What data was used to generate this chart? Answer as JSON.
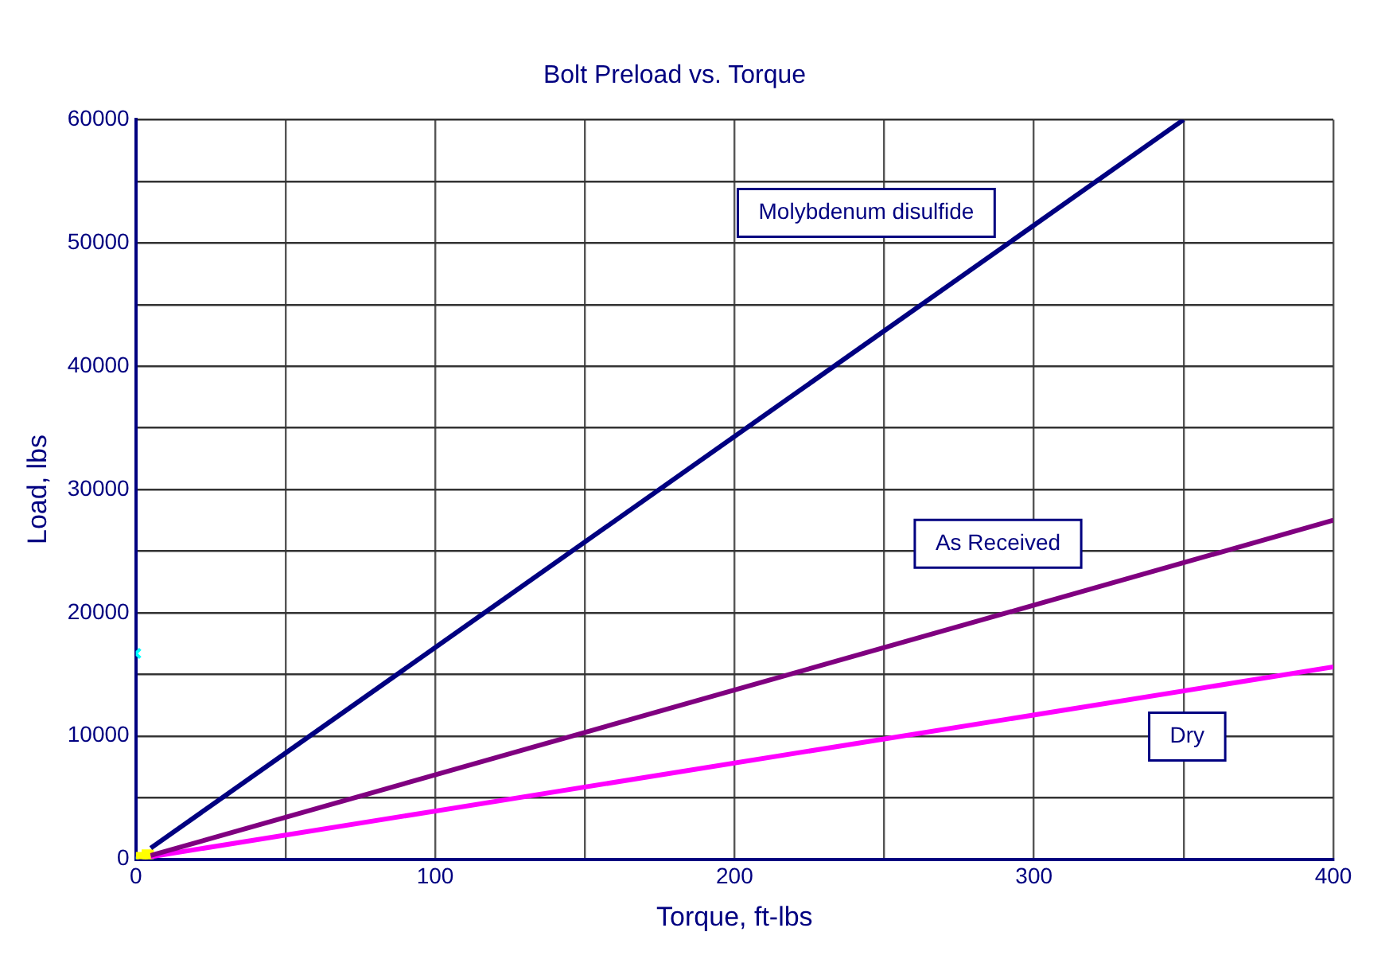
{
  "chart_data": {
    "type": "line",
    "title": "Bolt Preload vs. Torque",
    "xlabel": "Torque, ft-lbs",
    "ylabel": "Load, lbs",
    "xlim": [
      0,
      400
    ],
    "ylim": [
      0,
      60000
    ],
    "xticks": [
      0,
      {
        "value": 50,
        "label": null
      },
      100,
      {
        "value": 150,
        "label": null
      },
      200,
      {
        "value": 250,
        "label": null
      },
      300,
      {
        "value": 350,
        "label": null
      },
      400
    ],
    "yticks": [
      0,
      {
        "value": 5000,
        "label": null
      },
      10000,
      {
        "value": 15000,
        "label": null
      },
      20000,
      {
        "value": 25000,
        "label": null
      },
      30000,
      {
        "value": 35000,
        "label": null
      },
      40000,
      {
        "value": 45000,
        "label": null
      },
      50000,
      {
        "value": 55000,
        "label": null
      },
      60000
    ],
    "grid": true,
    "legend": false,
    "marker": "none",
    "line_style": "solid",
    "series": [
      {
        "name": "Molybdenum disulfide",
        "color": "#000080",
        "x": [
          5,
          350
        ],
        "values": [
          900,
          60000
        ]
      },
      {
        "name": "As Received",
        "color": "#800080",
        "x": [
          5,
          400
        ],
        "values": [
          300,
          27500
        ]
      },
      {
        "name": "Dry",
        "color": "#ff00ff",
        "x": [
          5,
          400
        ],
        "values": [
          200,
          15600
        ]
      },
      {
        "type": "scatter",
        "color": "#ffff00",
        "marker": "square",
        "x": [
          2,
          4
        ],
        "values": [
          100,
          300
        ]
      },
      {
        "type": "scatter",
        "color": "#00ffff",
        "marker": "cross",
        "x": [
          0,
          0
        ],
        "values": [
          0,
          16700
        ]
      }
    ]
  }
}
